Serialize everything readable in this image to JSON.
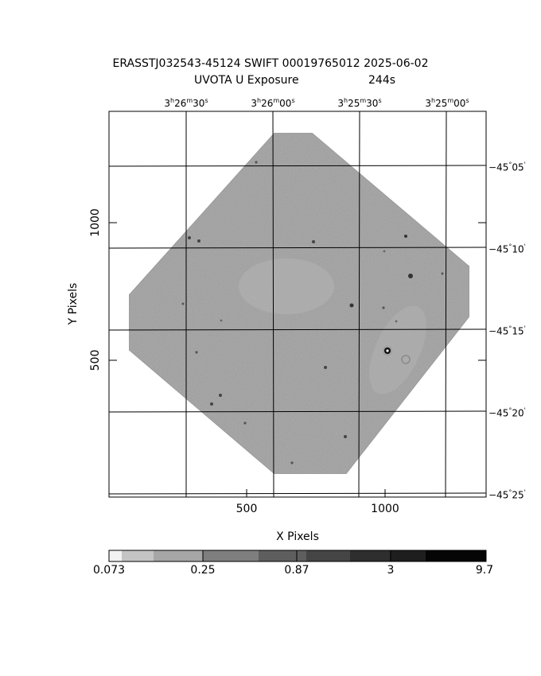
{
  "title": {
    "line1": "ERASSTJ032543-45124 SWIFT 00019765012 2025-06-02",
    "line2_instrument": "UVOTA U Exposure",
    "line2_exposure": "244s"
  },
  "axes": {
    "xlabel": "X Pixels",
    "ylabel": "Y Pixels",
    "x_ticks": [
      "500",
      "1000"
    ],
    "y_ticks": [
      "1000",
      "500"
    ]
  },
  "ra_ticks": [
    {
      "h": "3",
      "hu": "h",
      "m": "26",
      "mu": "m",
      "s": "30",
      "su": "s"
    },
    {
      "h": "3",
      "hu": "h",
      "m": "26",
      "mu": "m",
      "s": "00",
      "su": "s"
    },
    {
      "h": "3",
      "hu": "h",
      "m": "25",
      "mu": "m",
      "s": "30",
      "su": "s"
    },
    {
      "h": "3",
      "hu": "h",
      "m": "25",
      "mu": "m",
      "s": "00",
      "su": "s"
    }
  ],
  "dec_ticks": [
    {
      "d": "−45",
      "du": "°",
      "m": "05",
      "mu": "'"
    },
    {
      "d": "−45",
      "du": "°",
      "m": "10",
      "mu": "'"
    },
    {
      "d": "−45",
      "du": "°",
      "m": "15",
      "mu": "'"
    },
    {
      "d": "−45",
      "du": "°",
      "m": "20",
      "mu": "'"
    },
    {
      "d": "−45",
      "du": "°",
      "m": "25",
      "mu": "'"
    }
  ],
  "colorbar": {
    "labels": [
      "0.073",
      "0.25",
      "0.87",
      "3",
      "9.7"
    ]
  },
  "colors": {
    "field": "#bdbdbd",
    "frame": "#000000",
    "background": "#ffffff"
  }
}
